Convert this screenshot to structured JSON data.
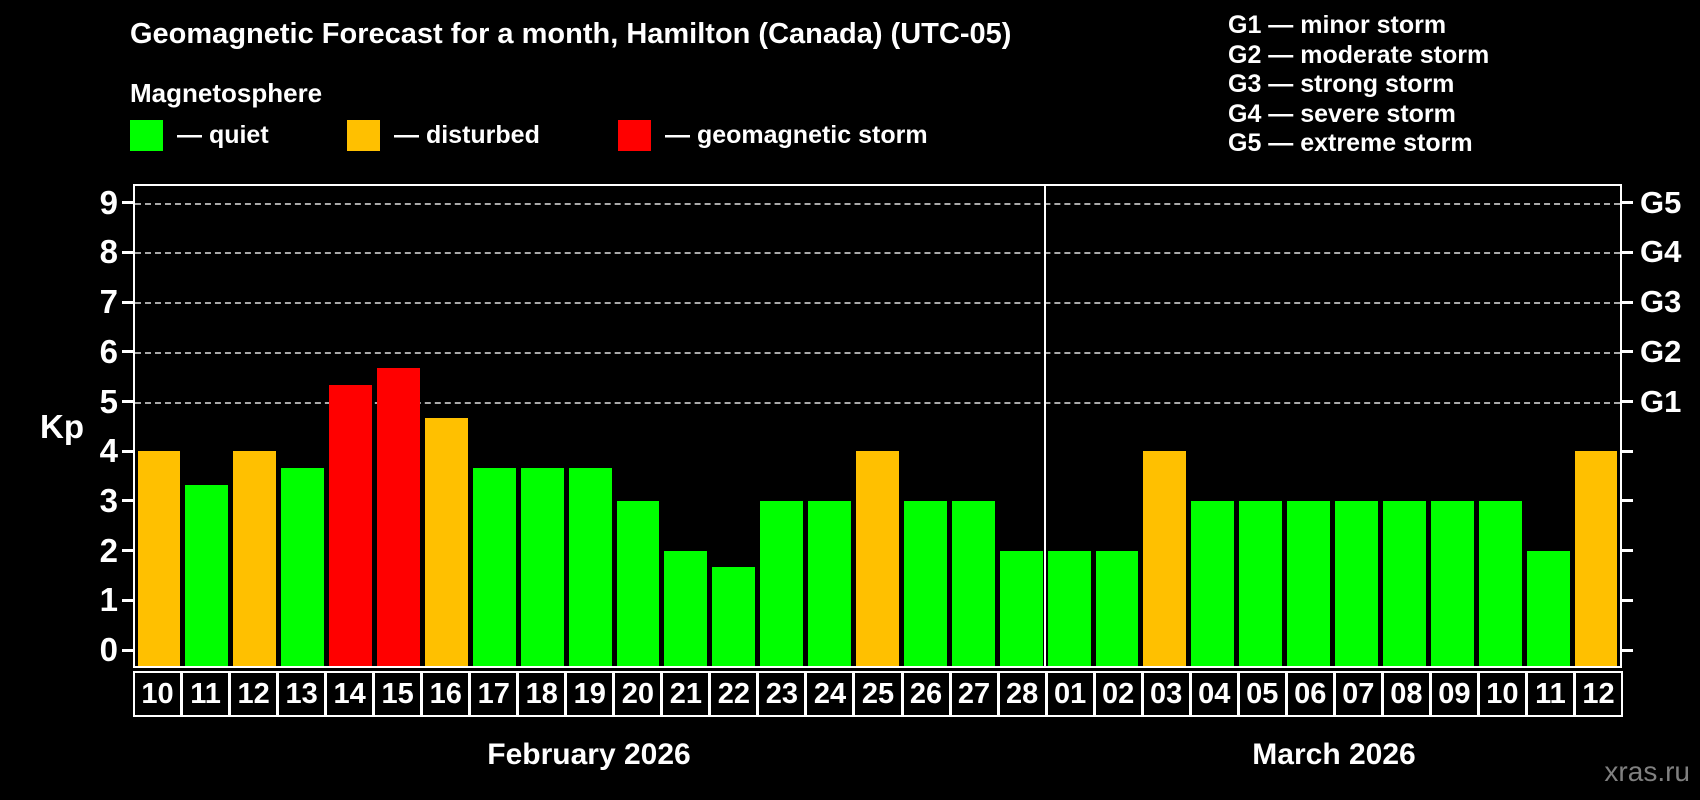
{
  "title": "Geomagnetic Forecast for a month, Hamilton (Canada) (UTC-05)",
  "subtitle": "Magnetosphere",
  "legend": {
    "quiet_label": "— quiet",
    "disturbed_label": "— disturbed",
    "storm_label": "— geomagnetic storm"
  },
  "g_legend": [
    "G1 — minor storm",
    "G2 — moderate storm",
    "G3 — strong storm",
    "G4 — severe storm",
    "G5 — extreme storm"
  ],
  "y_axis": {
    "label": "Kp",
    "ticks": [
      0,
      1,
      2,
      3,
      4,
      5,
      6,
      7,
      8,
      9
    ]
  },
  "months": [
    {
      "label": "February 2026",
      "days_count": 19
    },
    {
      "label": "March 2026",
      "days_count": 12
    }
  ],
  "watermark": "xras.ru",
  "colors": {
    "quiet": "#00ff00",
    "disturbed": "#ffc000",
    "storm": "#ff0000",
    "background": "#000000",
    "text": "#ffffff",
    "grid": "#aaaaaa",
    "watermark": "#808080"
  },
  "chart_data": {
    "type": "bar",
    "title": "Geomagnetic Forecast for a month, Hamilton (Canada) (UTC-05)",
    "xlabel": "",
    "ylabel": "Kp",
    "ylim": [
      0,
      9
    ],
    "grid": "dashed horizontal at Kp 5-9 only",
    "legend_position": "top-left and top-right",
    "categories": [
      "10",
      "11",
      "12",
      "13",
      "14",
      "15",
      "16",
      "17",
      "18",
      "19",
      "20",
      "21",
      "22",
      "23",
      "24",
      "25",
      "26",
      "27",
      "28",
      "01",
      "02",
      "03",
      "04",
      "05",
      "06",
      "07",
      "08",
      "09",
      "10",
      "11",
      "12"
    ],
    "values": [
      4.0,
      3.33,
      4.0,
      3.67,
      5.33,
      5.67,
      4.67,
      3.67,
      3.67,
      3.67,
      3.0,
      2.0,
      1.67,
      3.0,
      3.0,
      4.0,
      3.0,
      3.0,
      2.0,
      2.0,
      2.0,
      4.0,
      3.0,
      3.0,
      3.0,
      3.0,
      3.0,
      3.0,
      3.0,
      2.0,
      4.0
    ],
    "statuses": [
      "disturbed",
      "quiet",
      "disturbed",
      "quiet",
      "storm",
      "storm",
      "disturbed",
      "quiet",
      "quiet",
      "quiet",
      "quiet",
      "quiet",
      "quiet",
      "quiet",
      "quiet",
      "disturbed",
      "quiet",
      "quiet",
      "quiet",
      "quiet",
      "quiet",
      "disturbed",
      "quiet",
      "quiet",
      "quiet",
      "quiet",
      "quiet",
      "quiet",
      "quiet",
      "quiet",
      "disturbed"
    ],
    "month_split_index": 19,
    "gridlines_kp": [
      5,
      6,
      7,
      8,
      9
    ],
    "right_axis_labels": [
      {
        "kp": 5,
        "label": "G1"
      },
      {
        "kp": 6,
        "label": "G2"
      },
      {
        "kp": 7,
        "label": "G3"
      },
      {
        "kp": 8,
        "label": "G4"
      },
      {
        "kp": 9,
        "label": "G5"
      }
    ]
  }
}
